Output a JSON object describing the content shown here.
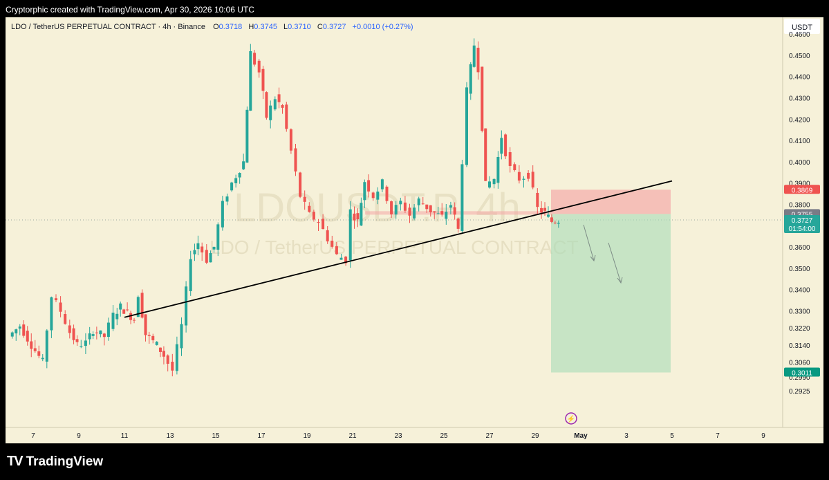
{
  "header": {
    "credit": "Cryptorphic created with TradingView.com, Apr 30, 2026 10:06 UTC"
  },
  "legend": {
    "symbol": "LDO / TetherUS PERPETUAL CONTRACT · 4h · Binance",
    "o_label": "O",
    "o": "0.3718",
    "h_label": "H",
    "h": "0.3745",
    "l_label": "L",
    "l": "0.3710",
    "c_label": "C",
    "c": "0.3727",
    "change": "+0.0010 (+0.27%)"
  },
  "watermark": {
    "ticker": "LDOUSDT.P, 4h",
    "name": "LDO / TetherUS PERPETUAL CONTRACT"
  },
  "currency": "USDT",
  "colors": {
    "up": "#26a69a",
    "down": "#ef5350",
    "bg": "#f6f1d9",
    "accent": "#2962ff"
  },
  "chart_data": {
    "type": "candlestick",
    "timeframe": "4h",
    "y_ticks": [
      "0.4600",
      "0.4500",
      "0.4400",
      "0.4300",
      "0.4200",
      "0.4100",
      "0.4000",
      "0.3900",
      "0.3800",
      "0.3600",
      "0.3500",
      "0.3400",
      "0.3300",
      "0.3220",
      "0.3140",
      "0.3060",
      "0.2990",
      "0.2925"
    ],
    "x_ticks": [
      "7",
      "9",
      "11",
      "13",
      "15",
      "17",
      "19",
      "21",
      "23",
      "25",
      "27",
      "29",
      "May",
      "3",
      "5",
      "7",
      "9"
    ],
    "price_labels": [
      {
        "value": "0.3869",
        "color": "#ef5350",
        "kind": "stop-loss"
      },
      {
        "value": "0.3755",
        "color": "#787b86",
        "kind": "entry"
      },
      {
        "value": "0.3727",
        "color": "#26a69a",
        "kind": "last-price",
        "countdown": "01:54:00"
      },
      {
        "value": "0.3011",
        "color": "#089981",
        "kind": "take-profit"
      }
    ],
    "close_path": [
      [
        6,
        0.318
      ],
      [
        6.5,
        0.323
      ],
      [
        7,
        0.314
      ],
      [
        7.5,
        0.306
      ],
      [
        7.9,
        0.337
      ],
      [
        8.3,
        0.33
      ],
      [
        8.7,
        0.32
      ],
      [
        9,
        0.314
      ],
      [
        9.4,
        0.315
      ],
      [
        9.7,
        0.321
      ],
      [
        10.2,
        0.318
      ],
      [
        10.6,
        0.328
      ],
      [
        10.9,
        0.332
      ],
      [
        11.2,
        0.329
      ],
      [
        11.5,
        0.326
      ],
      [
        11.7,
        0.338
      ],
      [
        12,
        0.319
      ],
      [
        12.5,
        0.314
      ],
      [
        12.8,
        0.309
      ],
      [
        13.2,
        0.302
      ],
      [
        13.6,
        0.323
      ],
      [
        14,
        0.356
      ],
      [
        14.3,
        0.362
      ],
      [
        14.7,
        0.354
      ],
      [
        15,
        0.36
      ],
      [
        15.4,
        0.38
      ],
      [
        15.8,
        0.39
      ],
      [
        16.3,
        0.4
      ],
      [
        16.6,
        0.451
      ],
      [
        17,
        0.442
      ],
      [
        17.3,
        0.421
      ],
      [
        17.7,
        0.43
      ],
      [
        18,
        0.425
      ],
      [
        18.4,
        0.405
      ],
      [
        18.8,
        0.384
      ],
      [
        19.2,
        0.375
      ],
      [
        19.6,
        0.372
      ],
      [
        20,
        0.364
      ],
      [
        20.4,
        0.356
      ],
      [
        20.8,
        0.354
      ],
      [
        21,
        0.377
      ],
      [
        21.3,
        0.372
      ],
      [
        21.6,
        0.391
      ],
      [
        22,
        0.384
      ],
      [
        22.4,
        0.39
      ],
      [
        22.8,
        0.376
      ],
      [
        23.2,
        0.381
      ],
      [
        23.6,
        0.375
      ],
      [
        24,
        0.382
      ],
      [
        24.5,
        0.377
      ],
      [
        25,
        0.374
      ],
      [
        25.4,
        0.38
      ],
      [
        25.7,
        0.368
      ],
      [
        26.1,
        0.433
      ],
      [
        26.4,
        0.455
      ],
      [
        26.6,
        0.444
      ],
      [
        26.9,
        0.389
      ],
      [
        27.3,
        0.392
      ],
      [
        27.6,
        0.412
      ],
      [
        28,
        0.397
      ],
      [
        28.4,
        0.392
      ],
      [
        28.8,
        0.394
      ],
      [
        29.2,
        0.378
      ],
      [
        29.5,
        0.376
      ],
      [
        29.8,
        0.372
      ],
      [
        30.1,
        0.3727
      ]
    ],
    "trendline": {
      "from": [
        "11",
        0.327
      ],
      "to": [
        "5",
        0.391
      ]
    },
    "position": {
      "type": "short",
      "entry": 0.3755,
      "stop": 0.3869,
      "target": 0.3011
    }
  }
}
